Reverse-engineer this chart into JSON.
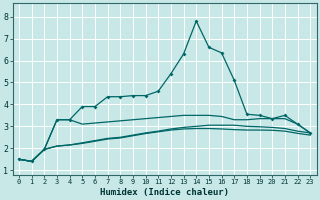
{
  "xlabel": "Humidex (Indice chaleur)",
  "background_color": "#c8e8e8",
  "grid_color": "#ffffff",
  "line_color": "#006666",
  "xlim": [
    -0.5,
    23.5
  ],
  "ylim": [
    0.8,
    8.6
  ],
  "x_ticks": [
    0,
    1,
    2,
    3,
    4,
    5,
    6,
    7,
    8,
    9,
    10,
    11,
    12,
    13,
    14,
    15,
    16,
    17,
    18,
    19,
    20,
    21,
    22,
    23
  ],
  "y_ticks": [
    1,
    2,
    3,
    4,
    5,
    6,
    7,
    8
  ],
  "curve1": [
    1.5,
    1.4,
    1.95,
    3.3,
    3.3,
    3.9,
    3.9,
    4.35,
    4.35,
    4.4,
    4.4,
    4.6,
    5.4,
    6.3,
    7.8,
    6.6,
    6.35,
    5.1,
    3.55,
    3.5,
    3.35,
    3.5,
    3.1,
    2.7
  ],
  "curve2": [
    1.5,
    1.4,
    1.95,
    3.3,
    3.3,
    3.1,
    3.15,
    3.2,
    3.25,
    3.3,
    3.35,
    3.4,
    3.45,
    3.5,
    3.5,
    3.5,
    3.45,
    3.3,
    3.3,
    3.35,
    3.35,
    3.35,
    3.1,
    2.7
  ],
  "curve3": [
    1.5,
    1.4,
    1.95,
    2.1,
    2.15,
    2.25,
    2.35,
    2.45,
    2.5,
    2.6,
    2.7,
    2.78,
    2.88,
    2.95,
    3.0,
    3.05,
    3.05,
    3.05,
    3.0,
    2.98,
    2.95,
    2.9,
    2.78,
    2.7
  ],
  "curve4": [
    1.5,
    1.4,
    1.95,
    2.1,
    2.15,
    2.22,
    2.32,
    2.42,
    2.47,
    2.57,
    2.67,
    2.75,
    2.83,
    2.88,
    2.9,
    2.9,
    2.88,
    2.85,
    2.83,
    2.83,
    2.82,
    2.78,
    2.68,
    2.6
  ]
}
